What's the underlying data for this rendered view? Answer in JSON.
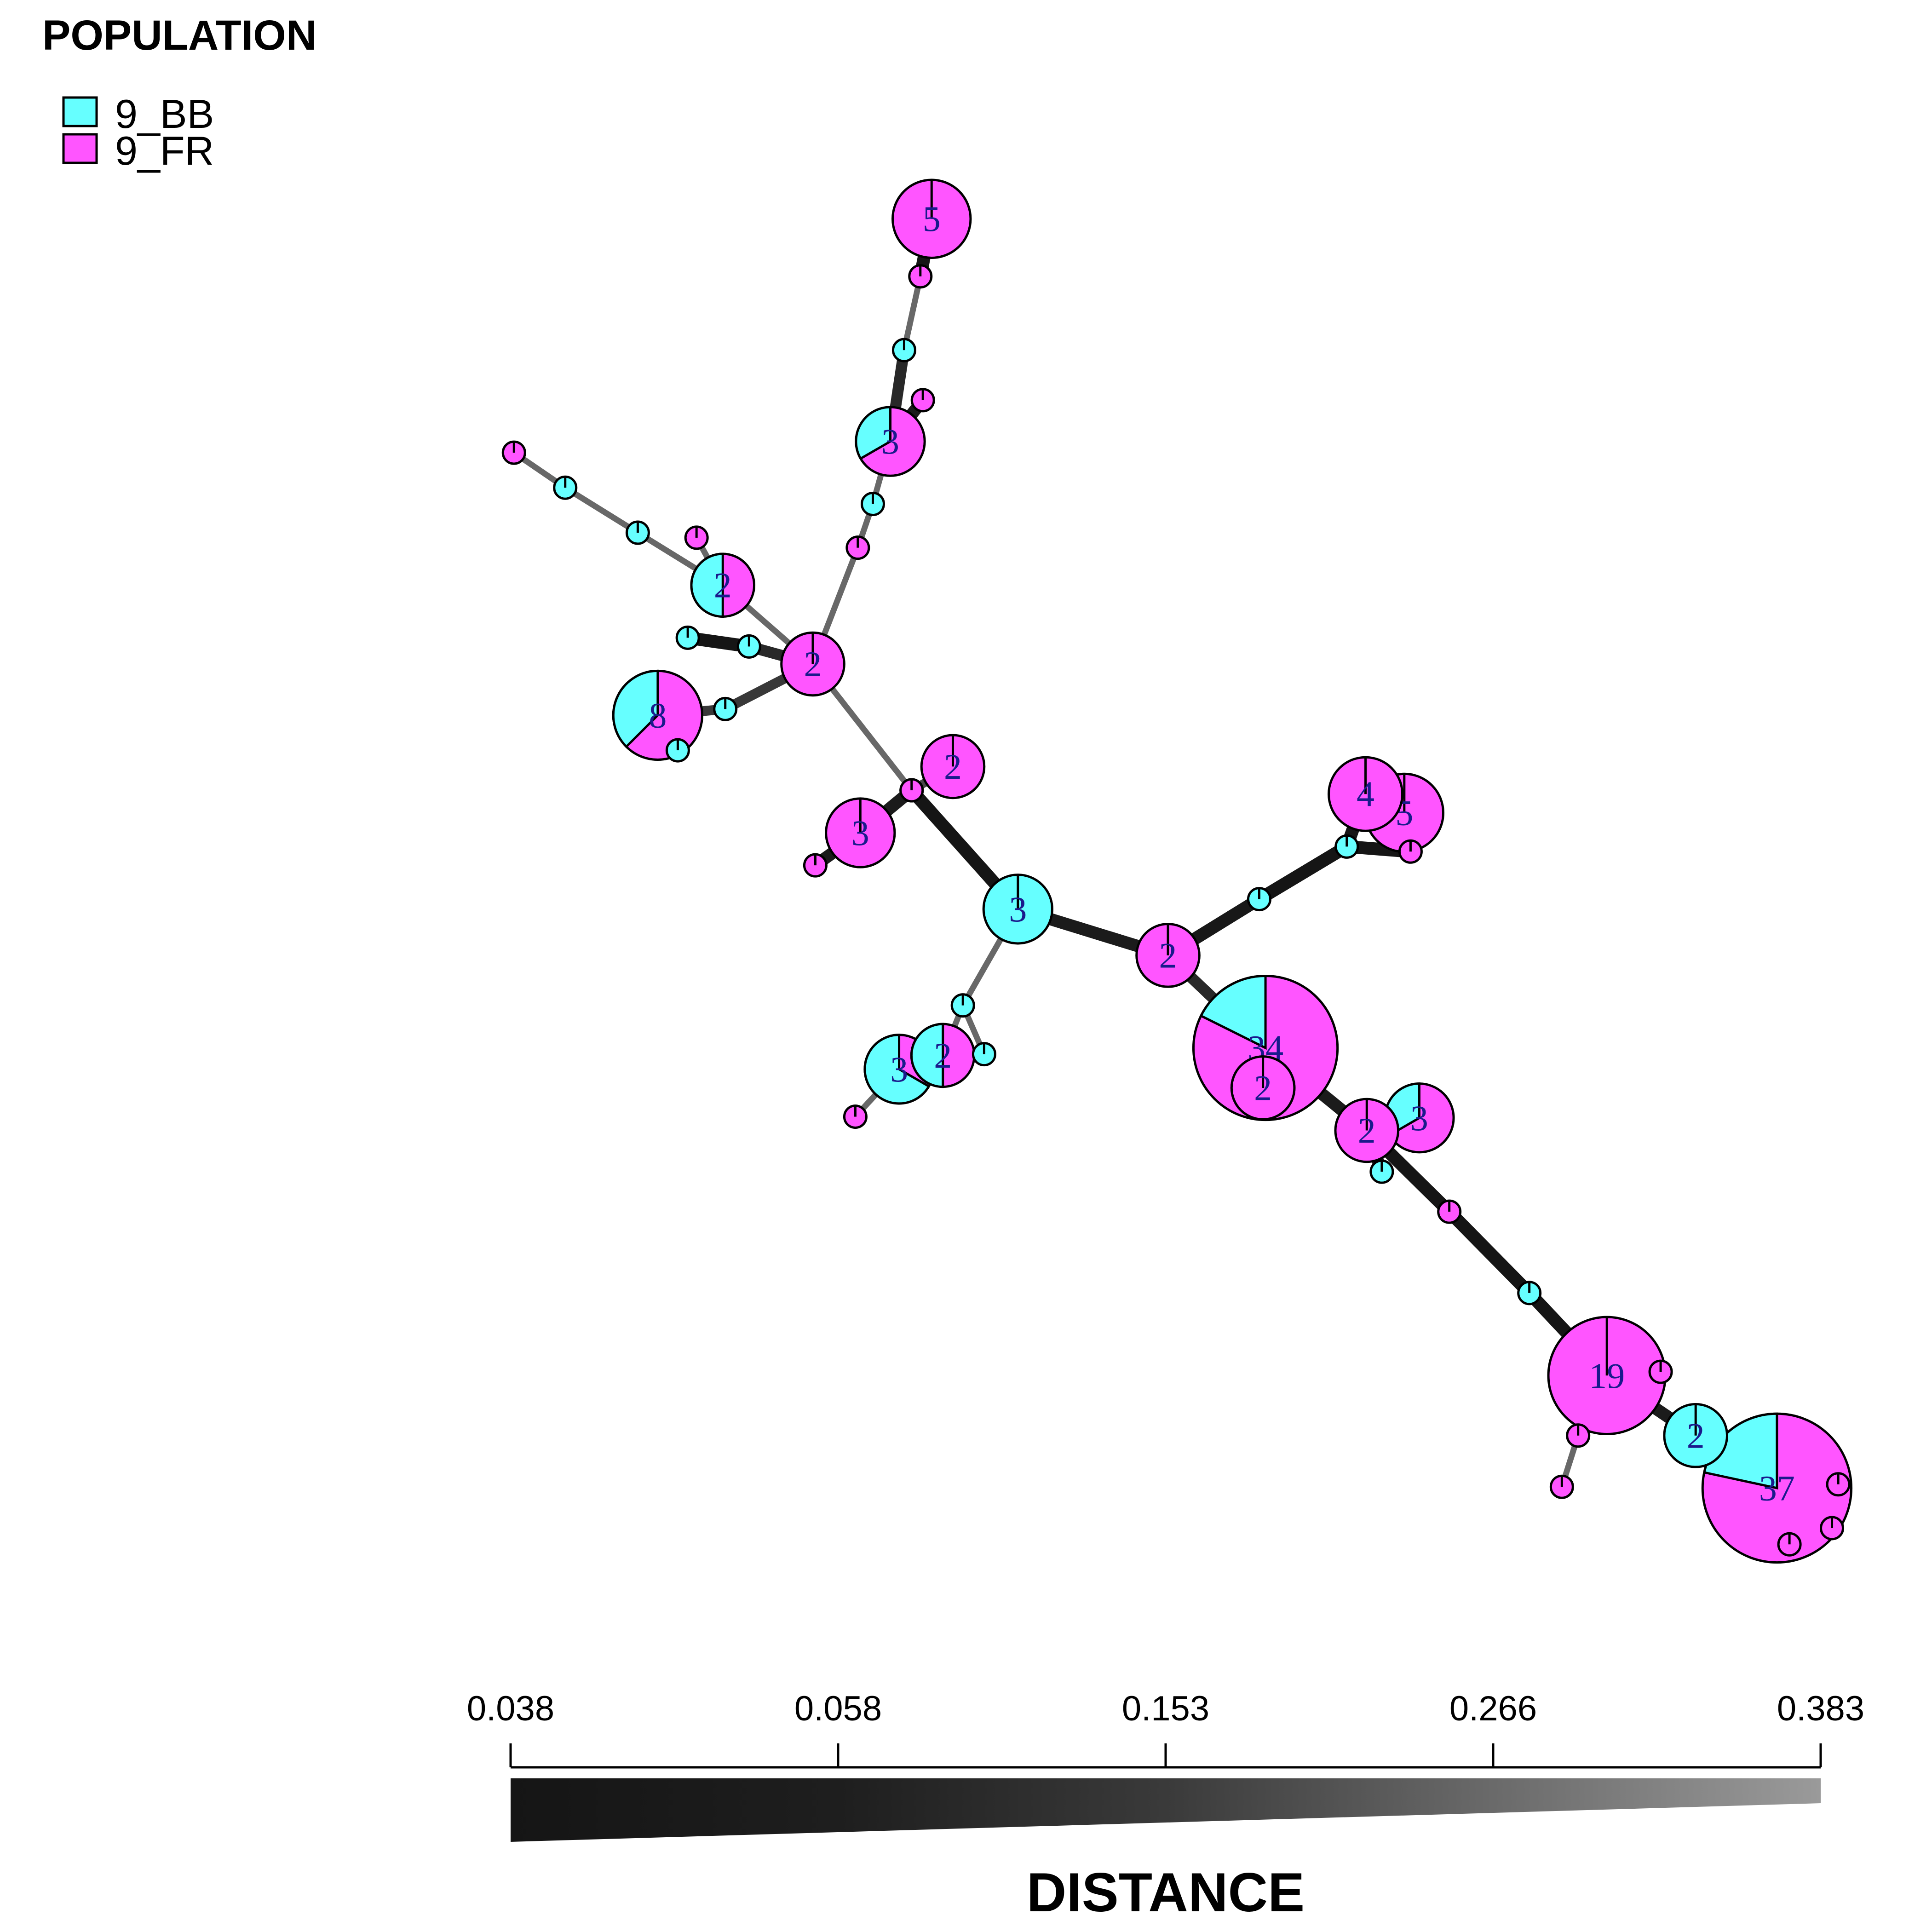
{
  "legend": {
    "title": "POPULATION",
    "items": [
      {
        "label": "9_BB",
        "color": "#66FFFF"
      },
      {
        "label": "9_FR",
        "color": "#FF55FF"
      }
    ]
  },
  "scale": {
    "title": "DISTANCE",
    "ticks": [
      "0.038",
      "0.058",
      "0.153",
      "0.266",
      "0.383"
    ]
  },
  "nodes": [
    {
      "id": "n5top",
      "label": "5",
      "size": 5,
      "bb": 0
    },
    {
      "id": "n3a",
      "label": "3",
      "size": 3,
      "bb": 1
    },
    {
      "id": "n2left",
      "label": "2",
      "size": 2,
      "bb": 1
    },
    {
      "id": "n2hub",
      "label": "2",
      "size": 2,
      "bb": 0
    },
    {
      "id": "n8",
      "label": "8",
      "size": 8,
      "bb": 3
    },
    {
      "id": "n2b",
      "label": "2",
      "size": 2,
      "bb": 0
    },
    {
      "id": "n3b",
      "label": "3",
      "size": 3,
      "bb": 0
    },
    {
      "id": "n3center",
      "label": "3",
      "size": 3,
      "bb": 3
    },
    {
      "id": "n3c",
      "label": "3",
      "size": 3,
      "bb": 2
    },
    {
      "id": "n2c",
      "label": "2",
      "size": 2,
      "bb": 1
    },
    {
      "id": "n2mid",
      "label": "2",
      "size": 2,
      "bb": 0
    },
    {
      "id": "n4",
      "label": "4",
      "size": 4,
      "bb": 0
    },
    {
      "id": "n5right",
      "label": "5",
      "size": 5,
      "bb": 0
    },
    {
      "id": "n34",
      "label": "34",
      "size": 34,
      "bb": 6
    },
    {
      "id": "n2d",
      "label": "2",
      "size": 2,
      "bb": 0
    },
    {
      "id": "n2e",
      "label": "2",
      "size": 2,
      "bb": 0
    },
    {
      "id": "n3d",
      "label": "3",
      "size": 3,
      "bb": 1
    },
    {
      "id": "n19",
      "label": "19",
      "size": 19,
      "bb": 0
    },
    {
      "id": "n2f",
      "label": "2",
      "size": 2,
      "bb": 2
    },
    {
      "id": "n37",
      "label": "37",
      "size": 37,
      "bb": 8
    },
    {
      "id": "s1",
      "size": 1,
      "bb": 0
    },
    {
      "id": "s2",
      "size": 1,
      "bb": 1
    },
    {
      "id": "s3",
      "size": 1,
      "bb": 0
    },
    {
      "id": "s4",
      "size": 1,
      "bb": 1
    },
    {
      "id": "s5",
      "size": 1,
      "bb": 0
    },
    {
      "id": "s6",
      "size": 1,
      "bb": 0
    },
    {
      "id": "s7",
      "size": 1,
      "bb": 1
    },
    {
      "id": "s8",
      "size": 1,
      "bb": 1
    },
    {
      "id": "s9",
      "size": 1,
      "bb": 0
    },
    {
      "id": "s10",
      "size": 1,
      "bb": 1
    },
    {
      "id": "s11",
      "size": 1,
      "bb": 1
    },
    {
      "id": "s12",
      "size": 1,
      "bb": 1
    },
    {
      "id": "s13",
      "size": 1,
      "bb": 1
    },
    {
      "id": "s14",
      "size": 1,
      "bb": 1
    },
    {
      "id": "s15",
      "size": 1,
      "bb": 0
    },
    {
      "id": "s16",
      "size": 1,
      "bb": 0
    },
    {
      "id": "s17",
      "size": 1,
      "bb": 1
    },
    {
      "id": "s18",
      "size": 1,
      "bb": 1
    },
    {
      "id": "s19",
      "size": 1,
      "bb": 0
    },
    {
      "id": "s20",
      "size": 1,
      "bb": 1
    },
    {
      "id": "s21",
      "size": 1,
      "bb": 1
    },
    {
      "id": "s22",
      "size": 1,
      "bb": 0
    },
    {
      "id": "s23",
      "size": 1,
      "bb": 1
    },
    {
      "id": "s24",
      "size": 1,
      "bb": 0
    },
    {
      "id": "s25",
      "size": 1,
      "bb": 1
    },
    {
      "id": "s26",
      "size": 1,
      "bb": 0
    },
    {
      "id": "s27",
      "size": 1,
      "bb": 0
    },
    {
      "id": "s28",
      "size": 1,
      "bb": 0
    },
    {
      "id": "s29",
      "size": 1,
      "bb": 0
    },
    {
      "id": "s30",
      "size": 1,
      "bb": 0
    },
    {
      "id": "s31",
      "size": 1,
      "bb": 0
    }
  ],
  "edges": [
    {
      "from": "n5top",
      "to": "s1",
      "distance": 0.04
    },
    {
      "from": "s1",
      "to": "s2",
      "distance": 0.3
    },
    {
      "from": "s2",
      "to": "n3a",
      "distance": 0.1
    },
    {
      "from": "n3a",
      "to": "s3",
      "distance": 0.06
    },
    {
      "from": "n3a",
      "to": "s4",
      "distance": 0.3
    },
    {
      "from": "s4",
      "to": "s5",
      "distance": 0.3
    },
    {
      "from": "s5",
      "to": "n2hub",
      "distance": 0.3
    },
    {
      "from": "s6",
      "to": "s7",
      "distance": 0.3
    },
    {
      "from": "s7",
      "to": "s8",
      "distance": 0.3
    },
    {
      "from": "s8",
      "to": "n2left",
      "distance": 0.3
    },
    {
      "from": "s9",
      "to": "n2left",
      "distance": 0.3
    },
    {
      "from": "n2left",
      "to": "n2hub",
      "distance": 0.3
    },
    {
      "from": "s10",
      "to": "s11",
      "distance": 0.04
    },
    {
      "from": "s11",
      "to": "n2hub",
      "distance": 0.1
    },
    {
      "from": "n2hub",
      "to": "s12",
      "distance": 0.15
    },
    {
      "from": "s12",
      "to": "n8",
      "distance": 0.15
    },
    {
      "from": "n8",
      "to": "s13",
      "distance": 0.2
    },
    {
      "from": "n2hub",
      "to": "s14",
      "distance": 0.3
    },
    {
      "from": "s14",
      "to": "n3center",
      "distance": 0.04
    },
    {
      "from": "s14",
      "to": "n2b",
      "distance": 0.2
    },
    {
      "from": "s15",
      "to": "n3b",
      "distance": 0.06
    },
    {
      "from": "n3b",
      "to": "s16",
      "distance": 0.06
    },
    {
      "from": "n3center",
      "to": "s17",
      "distance": 0.3
    },
    {
      "from": "s17",
      "to": "n2c",
      "distance": 0.3
    },
    {
      "from": "s17",
      "to": "s18",
      "distance": 0.3
    },
    {
      "from": "n2c",
      "to": "n3c",
      "distance": 0.3
    },
    {
      "from": "n3c",
      "to": "s19",
      "distance": 0.3
    },
    {
      "from": "n3center",
      "to": "n2mid",
      "distance": 0.06
    },
    {
      "from": "n2mid",
      "to": "s20",
      "distance": 0.05
    },
    {
      "from": "s20",
      "to": "s21",
      "distance": 0.04
    },
    {
      "from": "s21",
      "to": "n4",
      "distance": 0.04
    },
    {
      "from": "s21",
      "to": "s22",
      "distance": 0.04
    },
    {
      "from": "n4",
      "to": "n5right",
      "distance": 0.06
    },
    {
      "from": "n2mid",
      "to": "n34",
      "distance": 0.1
    },
    {
      "from": "n34",
      "to": "n2e",
      "distance": 0.06
    },
    {
      "from": "n2e",
      "to": "n3d",
      "distance": 0.1
    },
    {
      "from": "n2e",
      "to": "s23",
      "distance": 0.06
    },
    {
      "from": "n2e",
      "to": "s24",
      "distance": 0.04
    },
    {
      "from": "s24",
      "to": "s25",
      "distance": 0.04
    },
    {
      "from": "s25",
      "to": "n19",
      "distance": 0.04
    },
    {
      "from": "n19",
      "to": "s26",
      "distance": 0.05
    },
    {
      "from": "n19",
      "to": "s27",
      "distance": 0.2
    },
    {
      "from": "s27",
      "to": "s28",
      "distance": 0.3
    },
    {
      "from": "n19",
      "to": "n2f",
      "distance": 0.06
    },
    {
      "from": "n2f",
      "to": "n37",
      "distance": 0.06
    }
  ]
}
